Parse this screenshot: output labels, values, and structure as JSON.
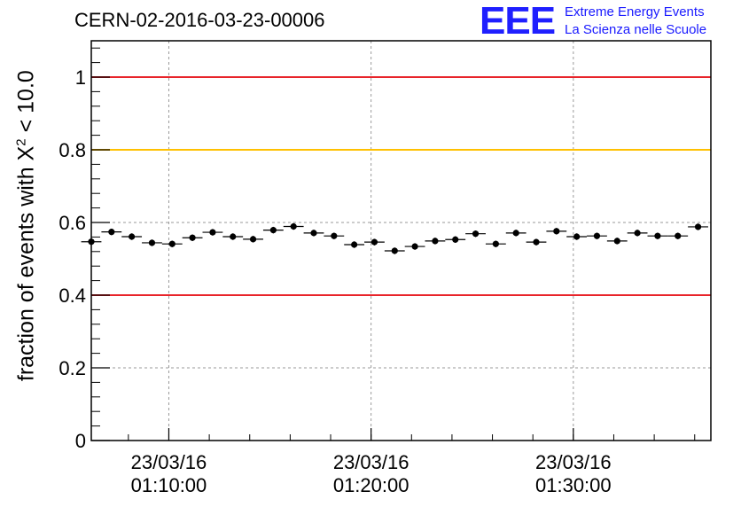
{
  "header": {
    "run_id": "CERN-02-2016-03-23-00006",
    "logo_mark": "EEE",
    "logo_line1": "Extreme Energy Events",
    "logo_line2": "La Scienza nelle Scuole"
  },
  "chart_data": {
    "type": "scatter",
    "title": "CERN-02-2016-03-23-00006",
    "xlabel": "",
    "ylabel_prefix": "fraction of events with",
    "ylabel_symbol": "X",
    "ylabel_exponent": "2",
    "ylabel_suffix": "< 10.0",
    "x_range_minutes": [
      "01:06:10",
      "01:36:48"
    ],
    "xticks": [
      {
        "date": "23/03/16",
        "time": "01:10:00"
      },
      {
        "date": "23/03/16",
        "time": "01:20:00"
      },
      {
        "date": "23/03/16",
        "time": "01:30:00"
      }
    ],
    "ylim": [
      0,
      1.1
    ],
    "yticks": [
      "0",
      "0.2",
      "0.4",
      "0.6",
      "0.8",
      "1"
    ],
    "grid": true,
    "reference_lines": [
      {
        "y": 1.0,
        "color": "#e8242a"
      },
      {
        "y": 0.8,
        "color": "#ffc000"
      },
      {
        "y": 0.4,
        "color": "#e8242a"
      }
    ],
    "series": [
      {
        "x": [
          "01:06:10",
          "01:07:10",
          "01:08:10",
          "01:09:10",
          "01:10:10",
          "01:11:10",
          "01:12:10",
          "01:13:10",
          "01:14:10",
          "01:15:10",
          "01:16:10",
          "01:17:10",
          "01:18:10",
          "01:19:10",
          "01:20:10",
          "01:21:10",
          "01:22:10",
          "01:23:10",
          "01:24:10",
          "01:25:10",
          "01:26:10",
          "01:27:10",
          "01:28:10",
          "01:29:10",
          "01:30:10",
          "01:31:10",
          "01:32:10",
          "01:33:10",
          "01:34:10",
          "01:35:10",
          "01:36:10"
        ],
        "y": [
          0.547,
          0.574,
          0.561,
          0.544,
          0.541,
          0.558,
          0.573,
          0.561,
          0.554,
          0.579,
          0.589,
          0.571,
          0.563,
          0.539,
          0.546,
          0.522,
          0.534,
          0.549,
          0.553,
          0.569,
          0.541,
          0.571,
          0.546,
          0.576,
          0.561,
          0.563,
          0.549,
          0.571,
          0.563,
          0.563,
          0.588
        ],
        "yerr": 0.009,
        "marker": "filled-circle",
        "color": "#000000"
      }
    ]
  }
}
